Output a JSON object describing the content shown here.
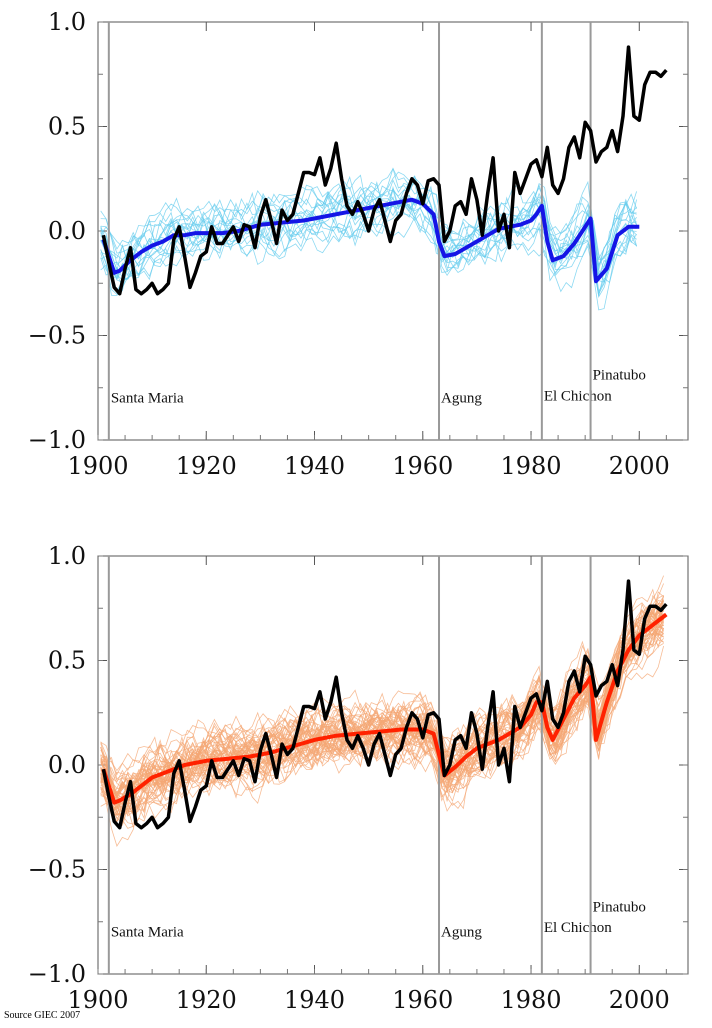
{
  "source_note": "Source GIEC 2007",
  "chart_data": [
    {
      "type": "line",
      "id": "natural",
      "title": "",
      "xlabel": "",
      "ylabel": "",
      "xlim": [
        1900,
        2009
      ],
      "ylim": [
        -1.0,
        1.0
      ],
      "x_ticks": [
        1900,
        1920,
        1940,
        1960,
        1980,
        2000
      ],
      "y_ticks": [
        1.0,
        0.5,
        0.0,
        -0.5,
        -1.0
      ],
      "y_tick_labels": [
        "1.0",
        "0.5",
        "0.0",
        "−0.5",
        "−1.0"
      ],
      "x_tick_labels": [
        "1900",
        "1920",
        "1940",
        "1960",
        "1980",
        "2000"
      ],
      "grid": false,
      "events": [
        {
          "year": 1902,
          "label": "Santa Maria",
          "label_y": -0.82
        },
        {
          "year": 1963,
          "label": "Agung",
          "label_y": -0.82
        },
        {
          "year": 1982,
          "label": "El Chichon",
          "label_y": -0.81
        },
        {
          "year": 1991,
          "label": "Pinatubo",
          "label_y": -0.71
        }
      ],
      "colors": {
        "ensemble": "#66ccee",
        "mean": "#1515e6",
        "observed": "#000000"
      },
      "ensemble_count": 19,
      "ensemble_end_year": 2000,
      "model_mean": {
        "x": [
          1901,
          1902,
          1903,
          1904,
          1906,
          1908,
          1910,
          1912,
          1914,
          1916,
          1918,
          1920,
          1923,
          1926,
          1930,
          1934,
          1938,
          1942,
          1946,
          1950,
          1954,
          1958,
          1960,
          1962,
          1963,
          1964,
          1966,
          1968,
          1970,
          1972,
          1974,
          1976,
          1978,
          1980,
          1981,
          1982,
          1983,
          1984,
          1986,
          1988,
          1990,
          1991,
          1992,
          1994,
          1996,
          1998,
          2000
        ],
        "y": [
          -0.04,
          -0.12,
          -0.2,
          -0.19,
          -0.14,
          -0.1,
          -0.07,
          -0.05,
          -0.02,
          -0.02,
          -0.01,
          -0.01,
          -0.01,
          0.0,
          0.03,
          0.04,
          0.05,
          0.07,
          0.09,
          0.11,
          0.13,
          0.15,
          0.13,
          0.08,
          -0.05,
          -0.12,
          -0.11,
          -0.08,
          -0.05,
          -0.02,
          0.01,
          0.02,
          0.03,
          0.05,
          0.08,
          0.12,
          -0.05,
          -0.14,
          -0.12,
          -0.06,
          0.02,
          0.06,
          -0.24,
          -0.18,
          -0.02,
          0.02,
          0.02
        ]
      },
      "observed": {
        "x": [
          1901,
          1902,
          1903,
          1904,
          1905,
          1906,
          1907,
          1908,
          1909,
          1910,
          1911,
          1912,
          1913,
          1914,
          1915,
          1916,
          1917,
          1918,
          1919,
          1920,
          1921,
          1922,
          1923,
          1924,
          1925,
          1926,
          1927,
          1928,
          1929,
          1930,
          1931,
          1932,
          1933,
          1934,
          1935,
          1936,
          1937,
          1938,
          1939,
          1940,
          1941,
          1942,
          1943,
          1944,
          1945,
          1946,
          1947,
          1948,
          1949,
          1950,
          1951,
          1952,
          1953,
          1954,
          1955,
          1956,
          1957,
          1958,
          1959,
          1960,
          1961,
          1962,
          1963,
          1964,
          1965,
          1966,
          1967,
          1968,
          1969,
          1970,
          1971,
          1972,
          1973,
          1974,
          1975,
          1976,
          1977,
          1978,
          1979,
          1980,
          1981,
          1982,
          1983,
          1984,
          1985,
          1986,
          1987,
          1988,
          1989,
          1990,
          1991,
          1992,
          1993,
          1994,
          1995,
          1996,
          1997,
          1998,
          1999,
          2000,
          2001,
          2002,
          2003,
          2004,
          2005
        ],
        "y": [
          -0.02,
          -0.15,
          -0.27,
          -0.3,
          -0.18,
          -0.08,
          -0.28,
          -0.3,
          -0.28,
          -0.25,
          -0.3,
          -0.28,
          -0.25,
          -0.04,
          0.02,
          -0.12,
          -0.27,
          -0.2,
          -0.12,
          -0.1,
          0.02,
          -0.06,
          -0.06,
          -0.02,
          0.02,
          -0.05,
          0.03,
          0.02,
          -0.08,
          0.07,
          0.15,
          0.05,
          -0.06,
          0.1,
          0.05,
          0.08,
          0.18,
          0.28,
          0.28,
          0.27,
          0.35,
          0.22,
          0.3,
          0.42,
          0.25,
          0.12,
          0.08,
          0.14,
          0.08,
          0.0,
          0.1,
          0.15,
          0.05,
          -0.05,
          0.05,
          0.08,
          0.18,
          0.25,
          0.22,
          0.13,
          0.24,
          0.25,
          0.22,
          -0.05,
          0.0,
          0.12,
          0.14,
          0.08,
          0.25,
          0.15,
          -0.02,
          0.18,
          0.35,
          0.0,
          0.08,
          -0.08,
          0.28,
          0.18,
          0.25,
          0.32,
          0.34,
          0.26,
          0.4,
          0.22,
          0.18,
          0.25,
          0.4,
          0.45,
          0.35,
          0.52,
          0.48,
          0.33,
          0.38,
          0.4,
          0.48,
          0.38,
          0.55,
          0.88,
          0.55,
          0.53,
          0.7,
          0.76,
          0.76,
          0.74,
          0.77
        ]
      }
    },
    {
      "type": "line",
      "id": "all_forcings",
      "title": "",
      "xlabel": "",
      "ylabel": "",
      "xlim": [
        1900,
        2009
      ],
      "ylim": [
        -1.0,
        1.0
      ],
      "x_ticks": [
        1900,
        1920,
        1940,
        1960,
        1980,
        2000
      ],
      "y_ticks": [
        1.0,
        0.5,
        0.0,
        -0.5,
        -1.0
      ],
      "y_tick_labels": [
        "1.0",
        "0.5",
        "0.0",
        "−0.5",
        "−1.0"
      ],
      "x_tick_labels": [
        "1900",
        "1920",
        "1940",
        "1960",
        "1980",
        "2000"
      ],
      "grid": false,
      "events": [
        {
          "year": 1902,
          "label": "Santa Maria",
          "label_y": -0.82
        },
        {
          "year": 1963,
          "label": "Agung",
          "label_y": -0.82
        },
        {
          "year": 1982,
          "label": "El Chichon",
          "label_y": -0.8
        },
        {
          "year": 1991,
          "label": "Pinatubo",
          "label_y": -0.7
        }
      ],
      "colors": {
        "ensemble": "#f4a774",
        "mean": "#ff2200",
        "observed": "#000000"
      },
      "ensemble_count": 55,
      "ensemble_end_year": 2005,
      "model_mean": {
        "x": [
          1901,
          1902,
          1903,
          1904,
          1906,
          1908,
          1910,
          1912,
          1914,
          1916,
          1918,
          1920,
          1924,
          1928,
          1932,
          1936,
          1940,
          1944,
          1948,
          1952,
          1956,
          1960,
          1962,
          1963,
          1964,
          1966,
          1968,
          1970,
          1974,
          1978,
          1980,
          1981,
          1982,
          1983,
          1984,
          1986,
          1988,
          1990,
          1991,
          1992,
          1994,
          1996,
          1998,
          2000,
          2002,
          2005
        ],
        "y": [
          -0.02,
          -0.1,
          -0.18,
          -0.17,
          -0.14,
          -0.1,
          -0.06,
          -0.04,
          -0.02,
          0.0,
          0.01,
          0.02,
          0.03,
          0.04,
          0.06,
          0.09,
          0.12,
          0.14,
          0.15,
          0.16,
          0.17,
          0.17,
          0.15,
          0.05,
          -0.05,
          -0.01,
          0.04,
          0.08,
          0.12,
          0.18,
          0.24,
          0.3,
          0.3,
          0.18,
          0.12,
          0.22,
          0.32,
          0.38,
          0.42,
          0.12,
          0.3,
          0.45,
          0.55,
          0.62,
          0.66,
          0.72
        ]
      },
      "observed": {
        "x": [
          1901,
          1902,
          1903,
          1904,
          1905,
          1906,
          1907,
          1908,
          1909,
          1910,
          1911,
          1912,
          1913,
          1914,
          1915,
          1916,
          1917,
          1918,
          1919,
          1920,
          1921,
          1922,
          1923,
          1924,
          1925,
          1926,
          1927,
          1928,
          1929,
          1930,
          1931,
          1932,
          1933,
          1934,
          1935,
          1936,
          1937,
          1938,
          1939,
          1940,
          1941,
          1942,
          1943,
          1944,
          1945,
          1946,
          1947,
          1948,
          1949,
          1950,
          1951,
          1952,
          1953,
          1954,
          1955,
          1956,
          1957,
          1958,
          1959,
          1960,
          1961,
          1962,
          1963,
          1964,
          1965,
          1966,
          1967,
          1968,
          1969,
          1970,
          1971,
          1972,
          1973,
          1974,
          1975,
          1976,
          1977,
          1978,
          1979,
          1980,
          1981,
          1982,
          1983,
          1984,
          1985,
          1986,
          1987,
          1988,
          1989,
          1990,
          1991,
          1992,
          1993,
          1994,
          1995,
          1996,
          1997,
          1998,
          1999,
          2000,
          2001,
          2002,
          2003,
          2004,
          2005
        ],
        "y": [
          -0.02,
          -0.15,
          -0.27,
          -0.3,
          -0.18,
          -0.08,
          -0.28,
          -0.3,
          -0.28,
          -0.25,
          -0.3,
          -0.28,
          -0.25,
          -0.04,
          0.02,
          -0.12,
          -0.27,
          -0.2,
          -0.12,
          -0.1,
          0.02,
          -0.06,
          -0.06,
          -0.02,
          0.02,
          -0.05,
          0.03,
          0.02,
          -0.08,
          0.07,
          0.15,
          0.05,
          -0.06,
          0.1,
          0.05,
          0.08,
          0.18,
          0.28,
          0.28,
          0.27,
          0.35,
          0.22,
          0.3,
          0.42,
          0.25,
          0.12,
          0.08,
          0.14,
          0.08,
          0.0,
          0.1,
          0.15,
          0.05,
          -0.05,
          0.05,
          0.08,
          0.18,
          0.25,
          0.22,
          0.13,
          0.24,
          0.25,
          0.22,
          -0.05,
          0.0,
          0.12,
          0.14,
          0.08,
          0.25,
          0.15,
          -0.02,
          0.18,
          0.35,
          0.0,
          0.08,
          -0.08,
          0.28,
          0.18,
          0.25,
          0.32,
          0.34,
          0.26,
          0.4,
          0.22,
          0.18,
          0.25,
          0.4,
          0.45,
          0.35,
          0.52,
          0.48,
          0.33,
          0.38,
          0.4,
          0.48,
          0.38,
          0.55,
          0.88,
          0.55,
          0.53,
          0.7,
          0.76,
          0.76,
          0.74,
          0.77
        ]
      }
    }
  ]
}
